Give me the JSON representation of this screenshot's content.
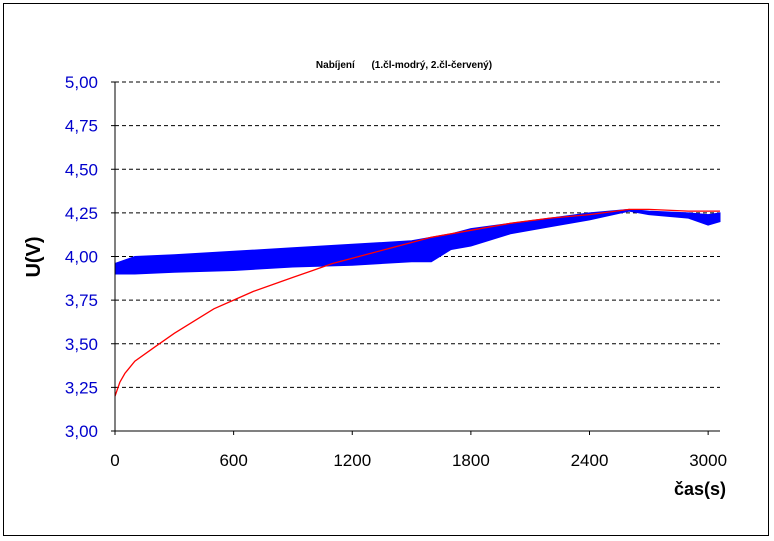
{
  "chart_data": {
    "type": "line",
    "title": "Nabíjení      (1.čl-modrý, 2.čl-červený)",
    "xlabel": "čas(s)",
    "ylabel": "U(V)",
    "xlim": [
      0,
      3060
    ],
    "ylim": [
      3.0,
      5.0
    ],
    "x_ticks": [
      0,
      600,
      1200,
      1800,
      2400,
      3000
    ],
    "x_tick_labels": [
      "0",
      "600",
      "1200",
      "1800",
      "2400",
      "3000"
    ],
    "y_ticks": [
      3.0,
      3.25,
      3.5,
      3.75,
      4.0,
      4.25,
      4.5,
      4.75,
      5.0
    ],
    "y_tick_labels": [
      "3,00",
      "3,25",
      "3,50",
      "3,75",
      "4,00",
      "4,25",
      "4,50",
      "4,75",
      "5,00"
    ],
    "grid": "horizontal-dashed",
    "colors": {
      "series1": "#0000ff",
      "series2": "#ff0000",
      "ytick": "#0000cc"
    },
    "series": [
      {
        "color": "#0000ff",
        "style": "band",
        "x": [
          0,
          100,
          300,
          600,
          900,
          1200,
          1500,
          1600,
          1700,
          1800,
          2000,
          2200,
          2400,
          2600,
          2700,
          2900,
          3000,
          3060
        ],
        "upper": [
          3.96,
          4.0,
          4.01,
          4.03,
          4.05,
          4.07,
          4.09,
          4.11,
          4.13,
          4.16,
          4.19,
          4.22,
          4.25,
          4.27,
          4.26,
          4.25,
          4.24,
          4.25
        ],
        "lower": [
          3.9,
          3.9,
          3.91,
          3.92,
          3.94,
          3.95,
          3.97,
          3.97,
          4.04,
          4.06,
          4.13,
          4.17,
          4.21,
          4.26,
          4.24,
          4.22,
          4.18,
          4.2
        ]
      },
      {
        "color": "#ff0000",
        "style": "line",
        "x": [
          0,
          25,
          50,
          100,
          200,
          300,
          400,
          500,
          600,
          700,
          800,
          900,
          1000,
          1100,
          1200,
          1300,
          1400,
          1500,
          1600,
          1800,
          2000,
          2200,
          2400,
          2600,
          2700,
          2900,
          3060
        ],
        "y": [
          3.2,
          3.28,
          3.33,
          3.4,
          3.48,
          3.56,
          3.63,
          3.7,
          3.75,
          3.8,
          3.84,
          3.88,
          3.92,
          3.96,
          3.99,
          4.02,
          4.05,
          4.08,
          4.11,
          4.15,
          4.19,
          4.22,
          4.24,
          4.27,
          4.27,
          4.26,
          4.26
        ]
      }
    ]
  }
}
